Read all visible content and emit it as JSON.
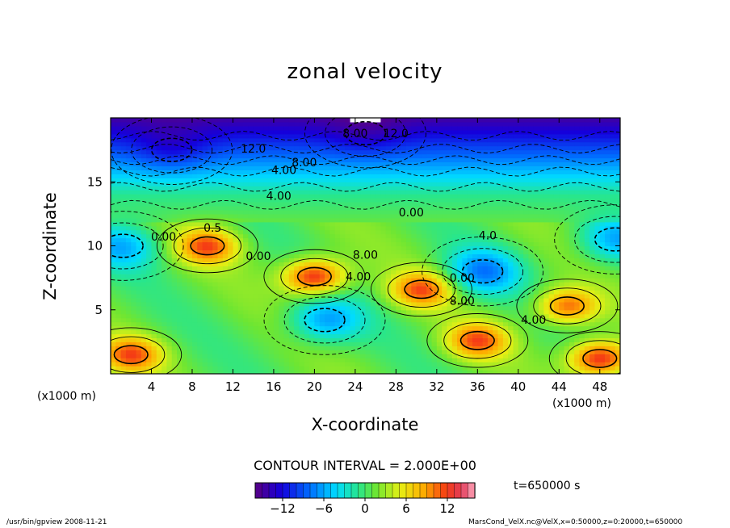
{
  "chart_data": {
    "type": "heatmap",
    "title": "zonal velocity",
    "xlabel": "X-coordinate",
    "ylabel": "Z-coordinate",
    "x_unit_left": "(x1000 m)",
    "x_unit_right": "(x1000 m)",
    "xlim": [
      0,
      50
    ],
    "ylim": [
      0,
      20
    ],
    "x_ticks": [
      4,
      8,
      12,
      16,
      20,
      24,
      28,
      32,
      36,
      40,
      44,
      48
    ],
    "y_ticks": [
      5,
      10,
      15
    ],
    "colorbar": {
      "range": [
        -16,
        16
      ],
      "ticks": [
        -12,
        -6,
        0,
        6,
        12
      ],
      "tick_labels": [
        "−12",
        "−6",
        "0",
        "6",
        "12"
      ]
    },
    "contour_interval": "CONTOUR INTERVAL = 2.000E+00",
    "time": "t=650000 s",
    "contour_labels": [
      {
        "text": "8.00",
        "x": 24,
        "y": 18.5
      },
      {
        "text": "12.0",
        "x": 28,
        "y": 18.5
      },
      {
        "text": "12.0",
        "x": 14,
        "y": 17.3
      },
      {
        "text": "8.00",
        "x": 19,
        "y": 16.2
      },
      {
        "text": "4.00",
        "x": 17,
        "y": 15.6
      },
      {
        "text": "4.00",
        "x": 16.5,
        "y": 13.6
      },
      {
        "text": "0.00",
        "x": 29.5,
        "y": 12.3
      },
      {
        "text": "0.5",
        "x": 10,
        "y": 11.1
      },
      {
        "text": "0.00",
        "x": 5.2,
        "y": 10.4
      },
      {
        "text": "4.0",
        "x": 37,
        "y": 10.5
      },
      {
        "text": "0.00",
        "x": 14.5,
        "y": 8.9
      },
      {
        "text": "8.00",
        "x": 25,
        "y": 9.0
      },
      {
        "text": "4.00",
        "x": 24.3,
        "y": 7.3
      },
      {
        "text": "0.00",
        "x": 34.5,
        "y": 7.2
      },
      {
        "text": "8.00",
        "x": 34.5,
        "y": 5.4
      },
      {
        "text": "4.00",
        "x": 41.5,
        "y": 3.9
      }
    ],
    "features": [
      {
        "kind": "jet_max",
        "x": 9.5,
        "y": 10.0,
        "value": 12
      },
      {
        "kind": "jet_max",
        "x": 20,
        "y": 7.6,
        "value": 12
      },
      {
        "kind": "jet_max",
        "x": 30.5,
        "y": 6.6,
        "value": 12
      },
      {
        "kind": "jet_max",
        "x": 36,
        "y": 2.6,
        "value": 12
      },
      {
        "kind": "jet_max",
        "x": 2,
        "y": 1.5,
        "value": 12
      },
      {
        "kind": "jet_max",
        "x": 48,
        "y": 1.2,
        "value": 12
      },
      {
        "kind": "jet_max",
        "x": 44.8,
        "y": 5.3,
        "value": 10
      },
      {
        "kind": "jet_min",
        "x": 36.5,
        "y": 8.0,
        "value": -8
      },
      {
        "kind": "jet_min",
        "x": 21,
        "y": 4.2,
        "value": -6
      },
      {
        "kind": "jet_min",
        "x": 1.2,
        "y": 10.0,
        "value": -6
      },
      {
        "kind": "jet_min",
        "x": 49.5,
        "y": 10.5,
        "value": -6
      },
      {
        "kind": "jet_min",
        "x": 25,
        "y": 18.8,
        "value": -14
      },
      {
        "kind": "jet_min",
        "x": 6,
        "y": 17.5,
        "value": -12
      }
    ]
  },
  "footer": {
    "left": "/usr/bin/gpview   2008-11-21",
    "right": "MarsCond_VelX.nc@VelX,x=0:50000,z=0:20000,t=650000"
  }
}
